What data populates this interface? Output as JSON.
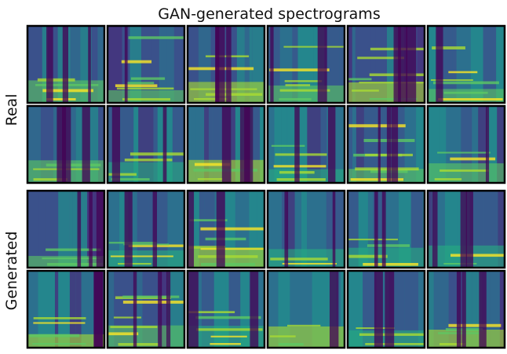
{
  "title": "GAN-generated spectrograms",
  "groups": [
    {
      "label": "Real"
    },
    {
      "label": "Generated"
    }
  ]
}
